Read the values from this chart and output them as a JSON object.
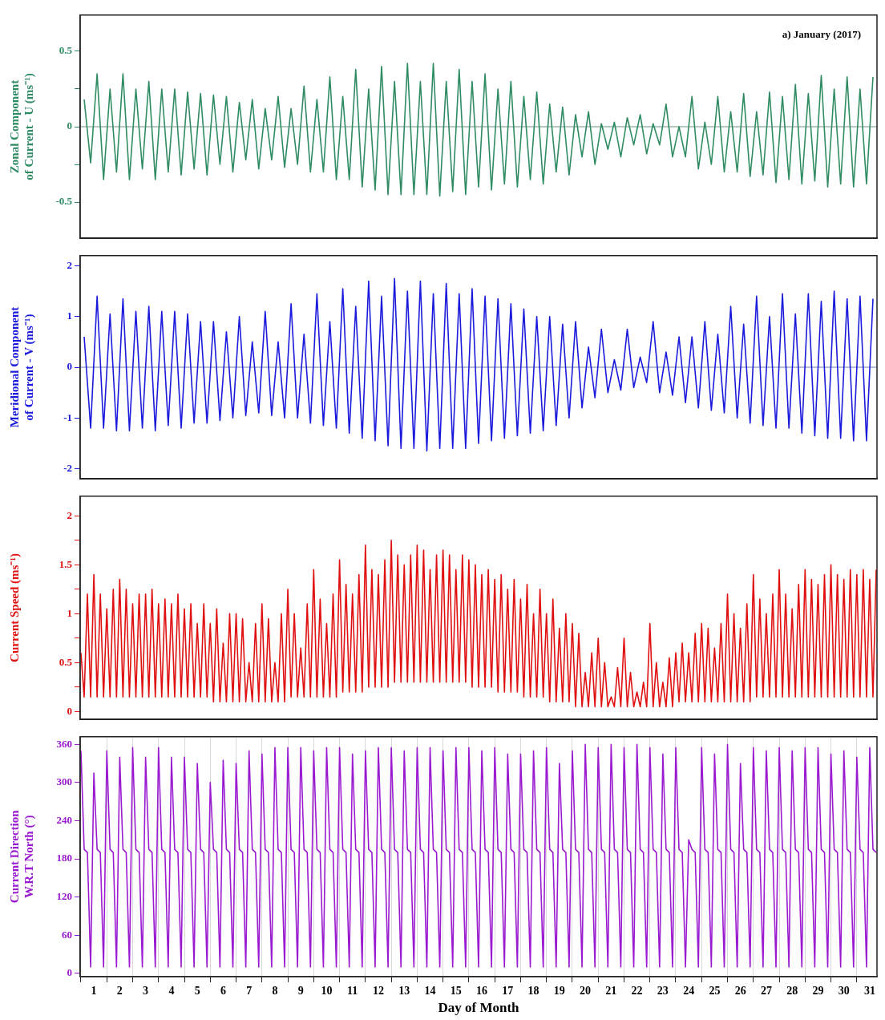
{
  "chart_data": [
    {
      "type": "line",
      "title": "a) January (2017)",
      "ylabel": "Zonal Component\nof Current - U (ms⁻¹)",
      "xlim": [
        0.97,
        31.78
      ],
      "ylim": [
        -0.74,
        0.74
      ],
      "yticks": [
        -0.5,
        {
          "value": -0.25,
          "label": null
        },
        0,
        {
          "value": 0.25,
          "label": null
        },
        0.5
      ],
      "tick_labels": "y",
      "marker": "none",
      "grid": false,
      "ref_lines": [
        {
          "axis": "y",
          "value": 0,
          "color": "#3c7a5a"
        }
      ],
      "x": [
        1.125,
        1.375,
        1.625,
        1.875,
        2.125,
        2.375,
        2.625,
        2.875,
        3.125,
        3.375,
        3.625,
        3.875,
        4.125,
        4.375,
        4.625,
        4.875,
        5.125,
        5.375,
        5.625,
        5.875,
        6.125,
        6.375,
        6.625,
        6.875,
        7.125,
        7.375,
        7.625,
        7.875,
        8.125,
        8.375,
        8.625,
        8.875,
        9.125,
        9.375,
        9.625,
        9.875,
        10.125,
        10.375,
        10.625,
        10.875,
        11.125,
        11.375,
        11.625,
        11.875,
        12.125,
        12.375,
        12.625,
        12.875,
        13.125,
        13.375,
        13.625,
        13.875,
        14.125,
        14.375,
        14.625,
        14.875,
        15.125,
        15.375,
        15.625,
        15.875,
        16.125,
        16.375,
        16.625,
        16.875,
        17.125,
        17.375,
        17.625,
        17.875,
        18.125,
        18.375,
        18.625,
        18.875,
        19.125,
        19.375,
        19.625,
        19.875,
        20.125,
        20.375,
        20.625,
        20.875,
        21.125,
        21.375,
        21.625,
        21.875,
        22.125,
        22.375,
        22.625,
        22.875,
        23.125,
        23.375,
        23.625,
        23.875,
        24.125,
        24.375,
        24.625,
        24.875,
        25.125,
        25.375,
        25.625,
        25.875,
        26.125,
        26.375,
        26.625,
        26.875,
        27.125,
        27.375,
        27.625,
        27.875,
        28.125,
        28.375,
        28.625,
        28.875,
        29.125,
        29.375,
        29.625,
        29.875,
        30.125,
        30.375,
        30.625,
        30.875,
        31.125,
        31.375,
        31.625
      ],
      "series": [
        {
          "color": "#2e8b62",
          "values": [
            0.18,
            -0.24,
            0.35,
            -0.35,
            0.25,
            -0.3,
            0.35,
            -0.35,
            0.25,
            -0.28,
            0.3,
            -0.35,
            0.25,
            -0.3,
            0.25,
            -0.32,
            0.23,
            -0.28,
            0.22,
            -0.32,
            0.21,
            -0.25,
            0.2,
            -0.3,
            0.16,
            -0.22,
            0.18,
            -0.28,
            0.12,
            -0.22,
            0.2,
            -0.27,
            0.12,
            -0.25,
            0.27,
            -0.3,
            0.18,
            -0.3,
            0.33,
            -0.35,
            0.2,
            -0.35,
            0.38,
            -0.4,
            0.25,
            -0.42,
            0.4,
            -0.45,
            0.3,
            -0.45,
            0.42,
            -0.45,
            0.3,
            -0.45,
            0.42,
            -0.46,
            0.3,
            -0.43,
            0.38,
            -0.45,
            0.3,
            -0.4,
            0.35,
            -0.42,
            0.25,
            -0.38,
            0.3,
            -0.4,
            0.2,
            -0.35,
            0.23,
            -0.38,
            0.15,
            -0.3,
            0.13,
            -0.32,
            0.08,
            -0.2,
            0.1,
            -0.25,
            0.02,
            -0.15,
            0.03,
            -0.2,
            0.06,
            -0.12,
            0.08,
            -0.18,
            0.02,
            -0.12,
            0.15,
            -0.2,
            0.0,
            -0.2,
            0.2,
            -0.28,
            0.03,
            -0.25,
            0.2,
            -0.3,
            0.1,
            -0.3,
            0.22,
            -0.33,
            0.1,
            -0.32,
            0.23,
            -0.37,
            0.2,
            -0.35,
            0.28,
            -0.38,
            0.22,
            -0.36,
            0.34,
            -0.4,
            0.25,
            -0.38,
            0.33,
            -0.4,
            0.25,
            -0.38,
            0.33
          ]
        }
      ]
    },
    {
      "type": "line",
      "ylabel": "Meridional Component\nof Current - V (ms⁻¹)",
      "xlim": [
        0.97,
        31.78
      ],
      "ylim": [
        -2.2,
        2.2
      ],
      "yticks": [
        -2,
        -1,
        0,
        1,
        2
      ],
      "tick_labels": "y",
      "marker": "none",
      "grid": false,
      "ref_lines": [
        {
          "axis": "y",
          "value": 0,
          "color": "#3c5a9a"
        }
      ],
      "x": [
        1.125,
        1.375,
        1.625,
        1.875,
        2.125,
        2.375,
        2.625,
        2.875,
        3.125,
        3.375,
        3.625,
        3.875,
        4.125,
        4.375,
        4.625,
        4.875,
        5.125,
        5.375,
        5.625,
        5.875,
        6.125,
        6.375,
        6.625,
        6.875,
        7.125,
        7.375,
        7.625,
        7.875,
        8.125,
        8.375,
        8.625,
        8.875,
        9.125,
        9.375,
        9.625,
        9.875,
        10.125,
        10.375,
        10.625,
        10.875,
        11.125,
        11.375,
        11.625,
        11.875,
        12.125,
        12.375,
        12.625,
        12.875,
        13.125,
        13.375,
        13.625,
        13.875,
        14.125,
        14.375,
        14.625,
        14.875,
        15.125,
        15.375,
        15.625,
        15.875,
        16.125,
        16.375,
        16.625,
        16.875,
        17.125,
        17.375,
        17.625,
        17.875,
        18.125,
        18.375,
        18.625,
        18.875,
        19.125,
        19.375,
        19.625,
        19.875,
        20.125,
        20.375,
        20.625,
        20.875,
        21.125,
        21.375,
        21.625,
        21.875,
        22.125,
        22.375,
        22.625,
        22.875,
        23.125,
        23.375,
        23.625,
        23.875,
        24.125,
        24.375,
        24.625,
        24.875,
        25.125,
        25.375,
        25.625,
        25.875,
        26.125,
        26.375,
        26.625,
        26.875,
        27.125,
        27.375,
        27.625,
        27.875,
        28.125,
        28.375,
        28.625,
        28.875,
        29.125,
        29.375,
        29.625,
        29.875,
        30.125,
        30.375,
        30.625,
        30.875,
        31.125,
        31.375,
        31.625
      ],
      "series": [
        {
          "color": "#1a1adc",
          "values": [
            0.6,
            -1.2,
            1.4,
            -1.2,
            1.05,
            -1.25,
            1.35,
            -1.25,
            1.1,
            -1.2,
            1.2,
            -1.25,
            1.1,
            -1.15,
            1.1,
            -1.2,
            1.05,
            -1.1,
            0.9,
            -1.1,
            0.9,
            -1.05,
            0.7,
            -1.0,
            1.0,
            -0.95,
            0.5,
            -0.9,
            1.1,
            -0.95,
            0.5,
            -1.0,
            1.25,
            -1.0,
            0.65,
            -1.1,
            1.45,
            -1.15,
            0.9,
            -1.2,
            1.55,
            -1.3,
            1.2,
            -1.4,
            1.7,
            -1.45,
            1.4,
            -1.55,
            1.75,
            -1.6,
            1.5,
            -1.6,
            1.7,
            -1.65,
            1.45,
            -1.6,
            1.65,
            -1.6,
            1.45,
            -1.6,
            1.55,
            -1.5,
            1.4,
            -1.45,
            1.35,
            -1.4,
            1.25,
            -1.35,
            1.15,
            -1.3,
            1.0,
            -1.25,
            1.0,
            -1.15,
            0.85,
            -1.0,
            0.9,
            -0.8,
            0.4,
            -0.6,
            0.75,
            -0.5,
            0.15,
            -0.45,
            0.75,
            -0.4,
            0.2,
            -0.3,
            0.9,
            -0.5,
            0.3,
            -0.55,
            0.6,
            -0.7,
            0.6,
            -0.8,
            0.9,
            -0.85,
            0.65,
            -0.9,
            1.2,
            -1.0,
            0.85,
            -1.1,
            1.4,
            -1.15,
            1.0,
            -1.2,
            1.45,
            -1.2,
            1.05,
            -1.3,
            1.45,
            -1.35,
            1.3,
            -1.4,
            1.5,
            -1.4,
            1.35,
            -1.45,
            1.4,
            -1.45,
            1.35
          ]
        }
      ]
    },
    {
      "type": "line",
      "ylabel": "Current Speed (ms⁻¹)",
      "xlim": [
        0.97,
        31.78
      ],
      "ylim": [
        -0.08,
        2.2
      ],
      "yticks": [
        0,
        {
          "value": 0.25,
          "label": null
        },
        0.5,
        {
          "value": 0.75,
          "label": null
        },
        1,
        {
          "value": 1.25,
          "label": null
        },
        1.5,
        {
          "value": 1.75,
          "label": null
        },
        2
      ],
      "tick_labels": "y",
      "marker": "none",
      "grid": false,
      "x": [
        1,
        1.125,
        1.25,
        1.375,
        1.5,
        1.625,
        1.75,
        1.875,
        2,
        2.125,
        2.25,
        2.375,
        2.5,
        2.625,
        2.75,
        2.875,
        3,
        3.125,
        3.25,
        3.375,
        3.5,
        3.625,
        3.75,
        3.875,
        4,
        4.125,
        4.25,
        4.375,
        4.5,
        4.625,
        4.75,
        4.875,
        5,
        5.125,
        5.25,
        5.375,
        5.5,
        5.625,
        5.75,
        5.875,
        6,
        6.125,
        6.25,
        6.375,
        6.5,
        6.625,
        6.75,
        6.875,
        7,
        7.125,
        7.25,
        7.375,
        7.5,
        7.625,
        7.75,
        7.875,
        8,
        8.125,
        8.25,
        8.375,
        8.5,
        8.625,
        8.75,
        8.875,
        9,
        9.125,
        9.25,
        9.375,
        9.5,
        9.625,
        9.75,
        9.875,
        10,
        10.125,
        10.25,
        10.375,
        10.5,
        10.625,
        10.75,
        10.875,
        11,
        11.125,
        11.25,
        11.375,
        11.5,
        11.625,
        11.75,
        11.875,
        12,
        12.125,
        12.25,
        12.375,
        12.5,
        12.625,
        12.75,
        12.875,
        13,
        13.125,
        13.25,
        13.375,
        13.5,
        13.625,
        13.75,
        13.875,
        14,
        14.125,
        14.25,
        14.375,
        14.5,
        14.625,
        14.75,
        14.875,
        15,
        15.125,
        15.25,
        15.375,
        15.5,
        15.625,
        15.75,
        15.875,
        16,
        16.125,
        16.25,
        16.375,
        16.5,
        16.625,
        16.75,
        16.875,
        17,
        17.125,
        17.25,
        17.375,
        17.5,
        17.625,
        17.75,
        17.875,
        18,
        18.125,
        18.25,
        18.375,
        18.5,
        18.625,
        18.75,
        18.875,
        19,
        19.125,
        19.25,
        19.375,
        19.5,
        19.625,
        19.75,
        19.875,
        20,
        20.125,
        20.25,
        20.375,
        20.5,
        20.625,
        20.75,
        20.875,
        21,
        21.125,
        21.25,
        21.375,
        21.5,
        21.625,
        21.75,
        21.875,
        22,
        22.125,
        22.25,
        22.375,
        22.5,
        22.625,
        22.75,
        22.875,
        23,
        23.125,
        23.25,
        23.375,
        23.5,
        23.625,
        23.75,
        23.875,
        24,
        24.125,
        24.25,
        24.375,
        24.5,
        24.625,
        24.75,
        24.875,
        25,
        25.125,
        25.25,
        25.375,
        25.5,
        25.625,
        25.75,
        25.875,
        26,
        26.125,
        26.25,
        26.375,
        26.5,
        26.625,
        26.75,
        26.875,
        27,
        27.125,
        27.25,
        27.375,
        27.5,
        27.625,
        27.75,
        27.875,
        28,
        28.125,
        28.25,
        28.375,
        28.5,
        28.625,
        28.75,
        28.875,
        29,
        29.125,
        29.25,
        29.375,
        29.5,
        29.625,
        29.75,
        29.875,
        30,
        30.125,
        30.25,
        30.375,
        30.5,
        30.625,
        30.75,
        30.875,
        31,
        31.125,
        31.25,
        31.375,
        31.5,
        31.625,
        31.75
      ],
      "series": [
        {
          "color": "#e01010",
          "values": [
            0.6,
            0.15,
            1.2,
            0.15,
            1.4,
            0.15,
            1.2,
            0.15,
            1.05,
            0.15,
            1.25,
            0.15,
            1.35,
            0.15,
            1.25,
            0.15,
            1.1,
            0.15,
            1.2,
            0.15,
            1.2,
            0.15,
            1.25,
            0.15,
            1.1,
            0.15,
            1.15,
            0.15,
            1.1,
            0.15,
            1.2,
            0.15,
            1.05,
            0.15,
            1.1,
            0.15,
            0.9,
            0.15,
            1.1,
            0.15,
            0.9,
            0.1,
            1.05,
            0.1,
            0.7,
            0.1,
            1.0,
            0.1,
            1.0,
            0.1,
            0.95,
            0.1,
            0.5,
            0.1,
            0.9,
            0.1,
            1.1,
            0.1,
            0.95,
            0.1,
            0.5,
            0.1,
            1.0,
            0.1,
            1.25,
            0.15,
            1.0,
            0.15,
            0.65,
            0.15,
            1.1,
            0.15,
            1.45,
            0.15,
            1.15,
            0.15,
            0.9,
            0.15,
            1.2,
            0.15,
            1.55,
            0.2,
            1.3,
            0.2,
            1.2,
            0.2,
            1.4,
            0.2,
            1.7,
            0.25,
            1.45,
            0.25,
            1.4,
            0.25,
            1.55,
            0.25,
            1.75,
            0.3,
            1.6,
            0.3,
            1.5,
            0.3,
            1.6,
            0.3,
            1.7,
            0.3,
            1.65,
            0.3,
            1.45,
            0.3,
            1.6,
            0.3,
            1.65,
            0.3,
            1.6,
            0.3,
            1.45,
            0.3,
            1.6,
            0.3,
            1.55,
            0.25,
            1.5,
            0.25,
            1.4,
            0.25,
            1.45,
            0.25,
            1.35,
            0.2,
            1.4,
            0.2,
            1.25,
            0.2,
            1.35,
            0.2,
            1.15,
            0.15,
            1.3,
            0.15,
            1.0,
            0.15,
            1.25,
            0.15,
            1.0,
            0.1,
            1.15,
            0.1,
            0.85,
            0.1,
            1.0,
            0.1,
            0.9,
            0.05,
            0.8,
            0.05,
            0.4,
            0.05,
            0.6,
            0.05,
            0.75,
            0.05,
            0.5,
            0.05,
            0.15,
            0.05,
            0.45,
            0.05,
            0.75,
            0.05,
            0.4,
            0.05,
            0.2,
            0.05,
            0.3,
            0.05,
            0.9,
            0.05,
            0.5,
            0.05,
            0.3,
            0.05,
            0.55,
            0.05,
            0.6,
            0.1,
            0.7,
            0.1,
            0.6,
            0.1,
            0.8,
            0.1,
            0.9,
            0.1,
            0.85,
            0.1,
            0.65,
            0.1,
            0.9,
            0.1,
            1.2,
            0.1,
            1.0,
            0.1,
            0.85,
            0.1,
            1.1,
            0.1,
            1.4,
            0.15,
            1.15,
            0.15,
            1.0,
            0.15,
            1.2,
            0.15,
            1.45,
            0.15,
            1.2,
            0.15,
            1.05,
            0.15,
            1.3,
            0.15,
            1.45,
            0.15,
            1.35,
            0.15,
            1.3,
            0.15,
            1.4,
            0.15,
            1.5,
            0.15,
            1.4,
            0.15,
            1.35,
            0.15,
            1.45,
            0.15,
            1.4,
            0.15,
            1.45,
            0.15,
            1.35,
            0.15,
            1.45
          ]
        }
      ]
    },
    {
      "type": "line",
      "ylabel": "Current Direction\nW.R.T North (°)",
      "xlabel": "Day of Month",
      "xlim": [
        0.97,
        31.78
      ],
      "ylim": [
        -5,
        372
      ],
      "yticks": [
        0,
        60,
        120,
        180,
        240,
        300,
        360
      ],
      "marker": "none",
      "grid": "x",
      "xticks": [
        {
          "value": 1,
          "label": null
        },
        {
          "value": 1.5,
          "label": "1"
        },
        {
          "value": 2,
          "label": null
        },
        {
          "value": 2.5,
          "label": "2"
        },
        {
          "value": 3,
          "label": null
        },
        {
          "value": 3.5,
          "label": "3"
        },
        {
          "value": 4,
          "label": null
        },
        {
          "value": 4.5,
          "label": "4"
        },
        {
          "value": 5,
          "label": null
        },
        {
          "value": 5.5,
          "label": "5"
        },
        {
          "value": 6,
          "label": null
        },
        {
          "value": 6.5,
          "label": "6"
        },
        {
          "value": 7,
          "label": null
        },
        {
          "value": 7.5,
          "label": "7"
        },
        {
          "value": 8,
          "label": null
        },
        {
          "value": 8.5,
          "label": "8"
        },
        {
          "value": 9,
          "label": null
        },
        {
          "value": 9.5,
          "label": "9"
        },
        {
          "value": 10,
          "label": null
        },
        {
          "value": 10.5,
          "label": "10"
        },
        {
          "value": 11,
          "label": null
        },
        {
          "value": 11.5,
          "label": "11"
        },
        {
          "value": 12,
          "label": null
        },
        {
          "value": 12.5,
          "label": "12"
        },
        {
          "value": 13,
          "label": null
        },
        {
          "value": 13.5,
          "label": "13"
        },
        {
          "value": 14,
          "label": null
        },
        {
          "value": 14.5,
          "label": "14"
        },
        {
          "value": 15,
          "label": null
        },
        {
          "value": 15.5,
          "label": "15"
        },
        {
          "value": 16,
          "label": null
        },
        {
          "value": 16.5,
          "label": "16"
        },
        {
          "value": 17,
          "label": null
        },
        {
          "value": 17.5,
          "label": "17"
        },
        {
          "value": 18,
          "label": null
        },
        {
          "value": 18.5,
          "label": "18"
        },
        {
          "value": 19,
          "label": null
        },
        {
          "value": 19.5,
          "label": "19"
        },
        {
          "value": 20,
          "label": null
        },
        {
          "value": 20.5,
          "label": "20"
        },
        {
          "value": 21,
          "label": null
        },
        {
          "value": 21.5,
          "label": "21"
        },
        {
          "value": 22,
          "label": null
        },
        {
          "value": 22.5,
          "label": "22"
        },
        {
          "value": 23,
          "label": null
        },
        {
          "value": 23.5,
          "label": "23"
        },
        {
          "value": 24,
          "label": null
        },
        {
          "value": 24.5,
          "label": "24"
        },
        {
          "value": 25,
          "label": null
        },
        {
          "value": 25.5,
          "label": "25"
        },
        {
          "value": 26,
          "label": null
        },
        {
          "value": 26.5,
          "label": "26"
        },
        {
          "value": 27,
          "label": null
        },
        {
          "value": 27.5,
          "label": "27"
        },
        {
          "value": 28,
          "label": null
        },
        {
          "value": 28.5,
          "label": "28"
        },
        {
          "value": 29,
          "label": null
        },
        {
          "value": 29.5,
          "label": "29"
        },
        {
          "value": 30,
          "label": null
        },
        {
          "value": 30.5,
          "label": "30"
        },
        {
          "value": 31,
          "label": null
        },
        {
          "value": 31.5,
          "label": "31"
        }
      ],
      "x": [
        1,
        1.125,
        1.25,
        1.375,
        1.5,
        1.625,
        1.75,
        1.875,
        2,
        2.125,
        2.25,
        2.375,
        2.5,
        2.625,
        2.75,
        2.875,
        3,
        3.125,
        3.25,
        3.375,
        3.5,
        3.625,
        3.75,
        3.875,
        4,
        4.125,
        4.25,
        4.375,
        4.5,
        4.625,
        4.75,
        4.875,
        5,
        5.125,
        5.25,
        5.375,
        5.5,
        5.625,
        5.75,
        5.875,
        6,
        6.125,
        6.25,
        6.375,
        6.5,
        6.625,
        6.75,
        6.875,
        7,
        7.125,
        7.25,
        7.375,
        7.5,
        7.625,
        7.75,
        7.875,
        8,
        8.125,
        8.25,
        8.375,
        8.5,
        8.625,
        8.75,
        8.875,
        9,
        9.125,
        9.25,
        9.375,
        9.5,
        9.625,
        9.75,
        9.875,
        10,
        10.125,
        10.25,
        10.375,
        10.5,
        10.625,
        10.75,
        10.875,
        11,
        11.125,
        11.25,
        11.375,
        11.5,
        11.625,
        11.75,
        11.875,
        12,
        12.125,
        12.25,
        12.375,
        12.5,
        12.625,
        12.75,
        12.875,
        13,
        13.125,
        13.25,
        13.375,
        13.5,
        13.625,
        13.75,
        13.875,
        14,
        14.125,
        14.25,
        14.375,
        14.5,
        14.625,
        14.75,
        14.875,
        15,
        15.125,
        15.25,
        15.375,
        15.5,
        15.625,
        15.75,
        15.875,
        16,
        16.125,
        16.25,
        16.375,
        16.5,
        16.625,
        16.75,
        16.875,
        17,
        17.125,
        17.25,
        17.375,
        17.5,
        17.625,
        17.75,
        17.875,
        18,
        18.125,
        18.25,
        18.375,
        18.5,
        18.625,
        18.75,
        18.875,
        19,
        19.125,
        19.25,
        19.375,
        19.5,
        19.625,
        19.75,
        19.875,
        20,
        20.125,
        20.25,
        20.375,
        20.5,
        20.625,
        20.75,
        20.875,
        21,
        21.125,
        21.25,
        21.375,
        21.5,
        21.625,
        21.75,
        21.875,
        22,
        22.125,
        22.25,
        22.375,
        22.5,
        22.625,
        22.75,
        22.875,
        23,
        23.125,
        23.25,
        23.375,
        23.5,
        23.625,
        23.75,
        23.875,
        24,
        24.125,
        24.25,
        24.375,
        24.5,
        24.625,
        24.75,
        24.875,
        25,
        25.125,
        25.25,
        25.375,
        25.5,
        25.625,
        25.75,
        25.875,
        26,
        26.125,
        26.25,
        26.375,
        26.5,
        26.625,
        26.75,
        26.875,
        27,
        27.125,
        27.25,
        27.375,
        27.5,
        27.625,
        27.75,
        27.875,
        28,
        28.125,
        28.25,
        28.375,
        28.5,
        28.625,
        28.75,
        28.875,
        29,
        29.125,
        29.25,
        29.375,
        29.5,
        29.625,
        29.75,
        29.875,
        30,
        30.125,
        30.25,
        30.375,
        30.5,
        30.625,
        30.75,
        30.875,
        31,
        31.125,
        31.25,
        31.375,
        31.5,
        31.625,
        31.75
      ],
      "series": [
        {
          "color": "#9a1ad0",
          "values": [
            350,
            195,
            190,
            10,
            315,
            195,
            190,
            10,
            350,
            195,
            190,
            10,
            340,
            195,
            190,
            10,
            355,
            195,
            190,
            10,
            340,
            195,
            190,
            10,
            355,
            195,
            190,
            10,
            340,
            195,
            190,
            10,
            340,
            195,
            190,
            10,
            330,
            195,
            190,
            10,
            300,
            195,
            190,
            10,
            335,
            195,
            190,
            10,
            330,
            195,
            190,
            10,
            350,
            195,
            190,
            10,
            345,
            195,
            190,
            10,
            355,
            195,
            190,
            10,
            355,
            195,
            190,
            10,
            355,
            195,
            190,
            10,
            350,
            195,
            190,
            10,
            355,
            195,
            190,
            10,
            355,
            195,
            190,
            10,
            345,
            195,
            190,
            10,
            350,
            195,
            190,
            10,
            355,
            195,
            190,
            10,
            355,
            195,
            190,
            10,
            350,
            195,
            190,
            10,
            355,
            195,
            190,
            10,
            355,
            195,
            190,
            10,
            350,
            195,
            190,
            10,
            355,
            195,
            190,
            10,
            355,
            195,
            190,
            10,
            350,
            195,
            190,
            10,
            355,
            195,
            190,
            10,
            345,
            195,
            190,
            10,
            345,
            195,
            190,
            10,
            350,
            195,
            190,
            10,
            355,
            195,
            190,
            10,
            330,
            195,
            190,
            10,
            350,
            195,
            190,
            10,
            360,
            195,
            190,
            10,
            355,
            195,
            190,
            10,
            360,
            195,
            190,
            10,
            355,
            195,
            190,
            10,
            360,
            195,
            190,
            10,
            355,
            195,
            190,
            10,
            345,
            195,
            190,
            10,
            355,
            195,
            190,
            10,
            210,
            195,
            190,
            10,
            355,
            195,
            190,
            10,
            345,
            195,
            190,
            10,
            360,
            195,
            190,
            10,
            330,
            195,
            190,
            10,
            355,
            195,
            190,
            10,
            350,
            195,
            190,
            10,
            355,
            195,
            190,
            10,
            350,
            195,
            190,
            10,
            355,
            195,
            190,
            10,
            355,
            195,
            190,
            10,
            345,
            195,
            190,
            10,
            350,
            195,
            190,
            10,
            340,
            195,
            190,
            10,
            355,
            195,
            190
          ]
        }
      ]
    }
  ]
}
